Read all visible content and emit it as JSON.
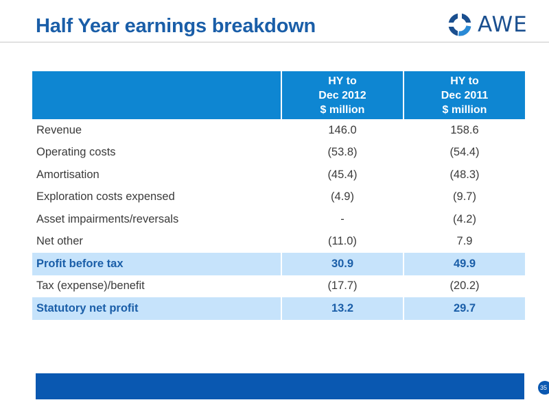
{
  "slide": {
    "title": "Half Year earnings breakdown",
    "logo_text": "AWE",
    "page_number": "35"
  },
  "colors": {
    "title": "#1a5ea8",
    "header_bg": "#0e86d2",
    "highlight_bg": "#c6e3fb",
    "footer_bar": "#0a58b1"
  },
  "table": {
    "headers": [
      {
        "lines": []
      },
      {
        "lines": [
          "HY to",
          "Dec 2012",
          "$ million"
        ]
      },
      {
        "lines": [
          "HY to",
          "Dec 2011",
          "$ million"
        ]
      }
    ],
    "rows": [
      {
        "label": "Revenue",
        "hy2012": "146.0",
        "hy2011": "158.6",
        "highlight": false
      },
      {
        "label": "Operating costs",
        "hy2012": "(53.8)",
        "hy2011": "(54.4)",
        "highlight": false
      },
      {
        "label": "Amortisation",
        "hy2012": "(45.4)",
        "hy2011": "(48.3)",
        "highlight": false
      },
      {
        "label": "Exploration costs expensed",
        "hy2012": "(4.9)",
        "hy2011": "(9.7)",
        "highlight": false
      },
      {
        "label": "Asset impairments/reversals",
        "hy2012": "-",
        "hy2011": "(4.2)",
        "highlight": false
      },
      {
        "label": "Net other",
        "hy2012": "(11.0)",
        "hy2011": "7.9",
        "highlight": false
      },
      {
        "label": "Profit before tax",
        "hy2012": "30.9",
        "hy2011": "49.9",
        "highlight": true
      },
      {
        "label": "Tax (expense)/benefit",
        "hy2012": "(17.7)",
        "hy2011": "(20.2)",
        "highlight": false
      },
      {
        "label": "Statutory net profit",
        "hy2012": "13.2",
        "hy2011": "29.7",
        "highlight": true
      }
    ]
  }
}
